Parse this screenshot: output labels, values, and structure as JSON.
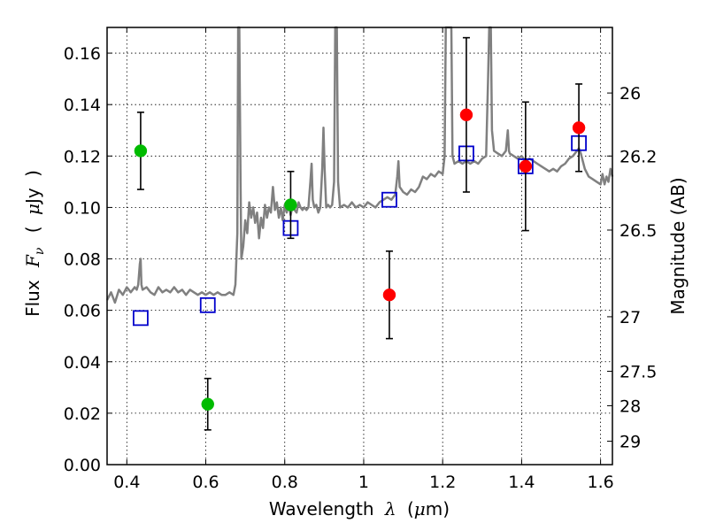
{
  "chart_data": {
    "type": "scatter",
    "xlabel": {
      "prefix": "Wavelength",
      "symbol": "λ",
      "unit_open": "(",
      "unit_mu": "μ",
      "unit_rest": "m)"
    },
    "ylabel": {
      "prefix": "Flux",
      "symbol_main": "F",
      "symbol_sub": "ν",
      "unit_open": "(",
      "unit_mu": "μ",
      "unit_rest": "Jy",
      "unit_close": ")"
    },
    "y2label": "Magnitude (AB)",
    "xlim": [
      0.35,
      1.63
    ],
    "ylim": [
      0.0,
      0.17
    ],
    "grid": true,
    "x_ticks": [
      {
        "value": 0.4,
        "label": "0.4"
      },
      {
        "value": 0.6,
        "label": "0.6"
      },
      {
        "value": 0.8,
        "label": "0.8"
      },
      {
        "value": 1.0,
        "label": "1"
      },
      {
        "value": 1.2,
        "label": "1.2"
      },
      {
        "value": 1.4,
        "label": "1.4"
      },
      {
        "value": 1.6,
        "label": "1.6"
      }
    ],
    "y_ticks": [
      {
        "value": 0.0,
        "label": "0.00"
      },
      {
        "value": 0.02,
        "label": "0.02"
      },
      {
        "value": 0.04,
        "label": "0.04"
      },
      {
        "value": 0.06,
        "label": "0.06"
      },
      {
        "value": 0.08,
        "label": "0.08"
      },
      {
        "value": 0.1,
        "label": "0.10"
      },
      {
        "value": 0.12,
        "label": "0.12"
      },
      {
        "value": 0.14,
        "label": "0.14"
      },
      {
        "value": 0.16,
        "label": "0.16"
      }
    ],
    "mag_ticks": [
      {
        "flux": 0.1445,
        "label": "26"
      },
      {
        "flux": 0.12,
        "label": "26.2"
      },
      {
        "flux": 0.0912,
        "label": "26.5"
      },
      {
        "flux": 0.0575,
        "label": "27"
      },
      {
        "flux": 0.0363,
        "label": "27.5"
      },
      {
        "flux": 0.0229,
        "label": "28"
      },
      {
        "flux": 0.0091,
        "label": "29"
      }
    ],
    "series": [
      {
        "name": "model_spectrum",
        "type": "line",
        "color": "#808080",
        "points": [
          [
            0.35,
            0.064
          ],
          [
            0.36,
            0.067
          ],
          [
            0.37,
            0.063
          ],
          [
            0.38,
            0.068
          ],
          [
            0.39,
            0.066
          ],
          [
            0.4,
            0.069
          ],
          [
            0.41,
            0.067
          ],
          [
            0.42,
            0.069
          ],
          [
            0.425,
            0.068
          ],
          [
            0.429,
            0.07
          ],
          [
            0.433,
            0.078
          ],
          [
            0.435,
            0.08
          ],
          [
            0.437,
            0.07
          ],
          [
            0.44,
            0.068
          ],
          [
            0.45,
            0.069
          ],
          [
            0.46,
            0.067
          ],
          [
            0.47,
            0.066
          ],
          [
            0.48,
            0.069
          ],
          [
            0.49,
            0.067
          ],
          [
            0.5,
            0.068
          ],
          [
            0.51,
            0.067
          ],
          [
            0.52,
            0.069
          ],
          [
            0.53,
            0.067
          ],
          [
            0.54,
            0.068
          ],
          [
            0.55,
            0.066
          ],
          [
            0.56,
            0.068
          ],
          [
            0.57,
            0.067
          ],
          [
            0.58,
            0.066
          ],
          [
            0.59,
            0.067
          ],
          [
            0.6,
            0.066
          ],
          [
            0.61,
            0.067
          ],
          [
            0.62,
            0.066
          ],
          [
            0.63,
            0.067
          ],
          [
            0.64,
            0.066
          ],
          [
            0.65,
            0.066
          ],
          [
            0.66,
            0.067
          ],
          [
            0.67,
            0.066
          ],
          [
            0.675,
            0.07
          ],
          [
            0.68,
            0.09
          ],
          [
            0.682,
            0.17
          ],
          [
            0.685,
            0.17
          ],
          [
            0.688,
            0.11
          ],
          [
            0.69,
            0.08
          ],
          [
            0.695,
            0.085
          ],
          [
            0.7,
            0.095
          ],
          [
            0.705,
            0.09
          ],
          [
            0.71,
            0.102
          ],
          [
            0.715,
            0.096
          ],
          [
            0.72,
            0.1
          ],
          [
            0.725,
            0.094
          ],
          [
            0.73,
            0.098
          ],
          [
            0.735,
            0.088
          ],
          [
            0.74,
            0.096
          ],
          [
            0.745,
            0.092
          ],
          [
            0.75,
            0.101
          ],
          [
            0.755,
            0.096
          ],
          [
            0.76,
            0.1
          ],
          [
            0.765,
            0.098
          ],
          [
            0.77,
            0.108
          ],
          [
            0.775,
            0.099
          ],
          [
            0.78,
            0.102
          ],
          [
            0.785,
            0.096
          ],
          [
            0.79,
            0.1
          ],
          [
            0.795,
            0.095
          ],
          [
            0.8,
            0.101
          ],
          [
            0.805,
            0.098
          ],
          [
            0.81,
            0.102
          ],
          [
            0.815,
            0.097
          ],
          [
            0.82,
            0.101
          ],
          [
            0.825,
            0.099
          ],
          [
            0.83,
            0.098
          ],
          [
            0.835,
            0.102
          ],
          [
            0.84,
            0.1
          ],
          [
            0.845,
            0.099
          ],
          [
            0.85,
            0.1
          ],
          [
            0.855,
            0.099
          ],
          [
            0.86,
            0.1
          ],
          [
            0.865,
            0.11
          ],
          [
            0.868,
            0.117
          ],
          [
            0.871,
            0.103
          ],
          [
            0.875,
            0.1
          ],
          [
            0.88,
            0.101
          ],
          [
            0.885,
            0.098
          ],
          [
            0.89,
            0.1
          ],
          [
            0.895,
            0.115
          ],
          [
            0.898,
            0.131
          ],
          [
            0.901,
            0.115
          ],
          [
            0.905,
            0.1
          ],
          [
            0.91,
            0.101
          ],
          [
            0.915,
            0.1
          ],
          [
            0.92,
            0.101
          ],
          [
            0.925,
            0.11
          ],
          [
            0.928,
            0.17
          ],
          [
            0.932,
            0.17
          ],
          [
            0.935,
            0.11
          ],
          [
            0.94,
            0.1
          ],
          [
            0.95,
            0.101
          ],
          [
            0.96,
            0.1
          ],
          [
            0.97,
            0.102
          ],
          [
            0.98,
            0.1
          ],
          [
            0.99,
            0.101
          ],
          [
            1.0,
            0.1
          ],
          [
            1.01,
            0.102
          ],
          [
            1.02,
            0.101
          ],
          [
            1.03,
            0.1
          ],
          [
            1.04,
            0.102
          ],
          [
            1.05,
            0.103
          ],
          [
            1.06,
            0.104
          ],
          [
            1.07,
            0.103
          ],
          [
            1.08,
            0.105
          ],
          [
            1.085,
            0.112
          ],
          [
            1.088,
            0.118
          ],
          [
            1.091,
            0.108
          ],
          [
            1.1,
            0.106
          ],
          [
            1.11,
            0.105
          ],
          [
            1.12,
            0.107
          ],
          [
            1.13,
            0.106
          ],
          [
            1.14,
            0.108
          ],
          [
            1.15,
            0.112
          ],
          [
            1.16,
            0.111
          ],
          [
            1.17,
            0.113
          ],
          [
            1.18,
            0.112
          ],
          [
            1.19,
            0.114
          ],
          [
            1.2,
            0.113
          ],
          [
            1.205,
            0.12
          ],
          [
            1.208,
            0.17
          ],
          [
            1.212,
            0.17
          ],
          [
            1.218,
            0.17
          ],
          [
            1.222,
            0.17
          ],
          [
            1.225,
            0.12
          ],
          [
            1.23,
            0.117
          ],
          [
            1.24,
            0.118
          ],
          [
            1.25,
            0.117
          ],
          [
            1.26,
            0.118
          ],
          [
            1.27,
            0.117
          ],
          [
            1.28,
            0.118
          ],
          [
            1.29,
            0.117
          ],
          [
            1.3,
            0.119
          ],
          [
            1.31,
            0.12
          ],
          [
            1.315,
            0.15
          ],
          [
            1.318,
            0.17
          ],
          [
            1.322,
            0.17
          ],
          [
            1.325,
            0.13
          ],
          [
            1.33,
            0.122
          ],
          [
            1.34,
            0.121
          ],
          [
            1.35,
            0.12
          ],
          [
            1.36,
            0.122
          ],
          [
            1.365,
            0.13
          ],
          [
            1.368,
            0.122
          ],
          [
            1.37,
            0.121
          ],
          [
            1.38,
            0.12
          ],
          [
            1.39,
            0.119
          ],
          [
            1.4,
            0.12
          ],
          [
            1.41,
            0.118
          ],
          [
            1.42,
            0.119
          ],
          [
            1.43,
            0.118
          ],
          [
            1.44,
            0.117
          ],
          [
            1.45,
            0.116
          ],
          [
            1.46,
            0.115
          ],
          [
            1.47,
            0.114
          ],
          [
            1.48,
            0.115
          ],
          [
            1.49,
            0.114
          ],
          [
            1.5,
            0.116
          ],
          [
            1.51,
            0.117
          ],
          [
            1.52,
            0.119
          ],
          [
            1.53,
            0.12
          ],
          [
            1.54,
            0.122
          ],
          [
            1.545,
            0.123
          ],
          [
            1.55,
            0.121
          ],
          [
            1.56,
            0.115
          ],
          [
            1.57,
            0.112
          ],
          [
            1.58,
            0.111
          ],
          [
            1.59,
            0.11
          ],
          [
            1.6,
            0.109
          ],
          [
            1.605,
            0.113
          ],
          [
            1.61,
            0.109
          ],
          [
            1.615,
            0.112
          ],
          [
            1.62,
            0.11
          ],
          [
            1.625,
            0.115
          ],
          [
            1.63,
            0.112
          ]
        ]
      },
      {
        "name": "model_photometry",
        "type": "scatter",
        "marker": "open-square",
        "color": "#0000cc",
        "points": [
          [
            0.435,
            0.057
          ],
          [
            0.605,
            0.062
          ],
          [
            0.815,
            0.092
          ],
          [
            1.065,
            0.103
          ],
          [
            1.26,
            0.121
          ],
          [
            1.41,
            0.116
          ],
          [
            1.545,
            0.125
          ]
        ]
      },
      {
        "name": "detections",
        "type": "errorbar",
        "marker": "circle",
        "color": "#ff0000",
        "points": [
          {
            "x": 1.065,
            "y": 0.066,
            "err": 0.017
          },
          {
            "x": 1.26,
            "y": 0.136,
            "err": 0.03
          },
          {
            "x": 1.41,
            "y": 0.116,
            "err": 0.025
          },
          {
            "x": 1.545,
            "y": 0.131,
            "err": 0.017
          }
        ]
      },
      {
        "name": "other_bands",
        "type": "errorbar",
        "marker": "circle",
        "color": "#00bb00",
        "points": [
          {
            "x": 0.435,
            "y": 0.122,
            "err": 0.015
          },
          {
            "x": 0.605,
            "y": 0.0235,
            "err": 0.01
          },
          {
            "x": 0.815,
            "y": 0.101,
            "err": 0.013
          }
        ]
      }
    ]
  }
}
